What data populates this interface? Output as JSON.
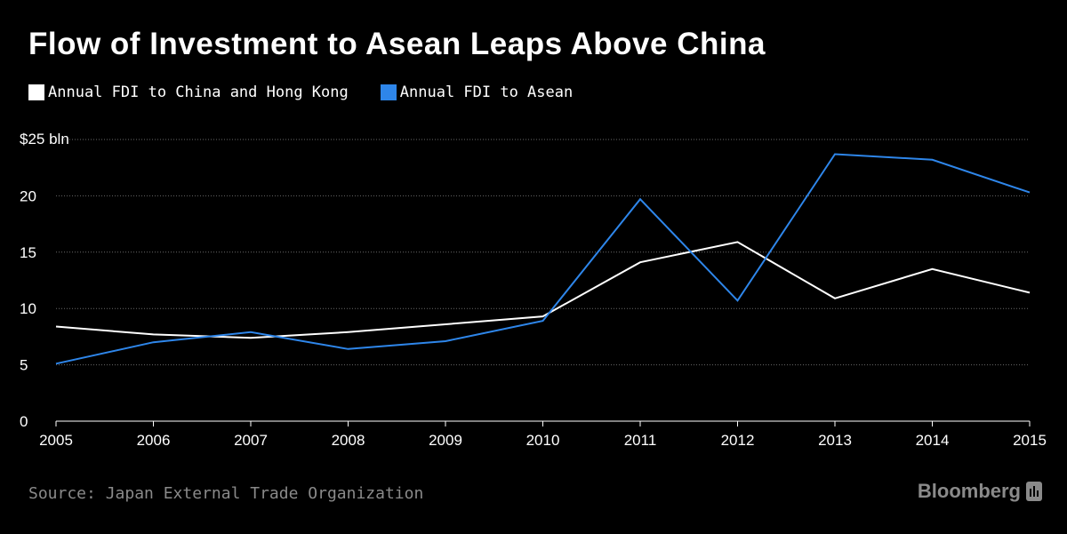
{
  "title": "Flow of Investment to Asean Leaps Above China",
  "legend": [
    {
      "label": "Annual FDI to China and Hong Kong",
      "color": "#ffffff"
    },
    {
      "label": "Annual FDI to Asean",
      "color": "#2e86ea"
    }
  ],
  "source": "Source: Japan External Trade Organization",
  "brand": "Bloomberg",
  "chart_data": {
    "type": "line",
    "title": "Flow of Investment to Asean Leaps Above China",
    "xlabel": "",
    "ylabel": "$25 bln",
    "x": [
      2005,
      2006,
      2007,
      2008,
      2009,
      2010,
      2011,
      2012,
      2013,
      2014,
      2015
    ],
    "x_tick_labels": [
      "2005",
      "2006",
      "2007",
      "2008",
      "2009",
      "2010",
      "2011",
      "2012",
      "2013",
      "2014",
      "2015"
    ],
    "ylim": [
      0,
      25
    ],
    "y_ticks": [
      0,
      5,
      10,
      15,
      20,
      25
    ],
    "y_tick_labels": [
      "0",
      "5",
      "10",
      "15",
      "20",
      "$25 bln"
    ],
    "grid": true,
    "legend_position": "top-left",
    "series": [
      {
        "name": "Annual FDI to China and Hong Kong",
        "color": "#ffffff",
        "values": [
          8.4,
          7.7,
          7.4,
          7.9,
          8.6,
          9.3,
          14.1,
          15.9,
          10.9,
          13.5,
          11.4
        ]
      },
      {
        "name": "Annual FDI to Asean",
        "color": "#2e86ea",
        "values": [
          5.1,
          7.0,
          7.9,
          6.4,
          7.1,
          8.9,
          19.7,
          10.7,
          23.7,
          23.2,
          20.3
        ]
      }
    ]
  }
}
